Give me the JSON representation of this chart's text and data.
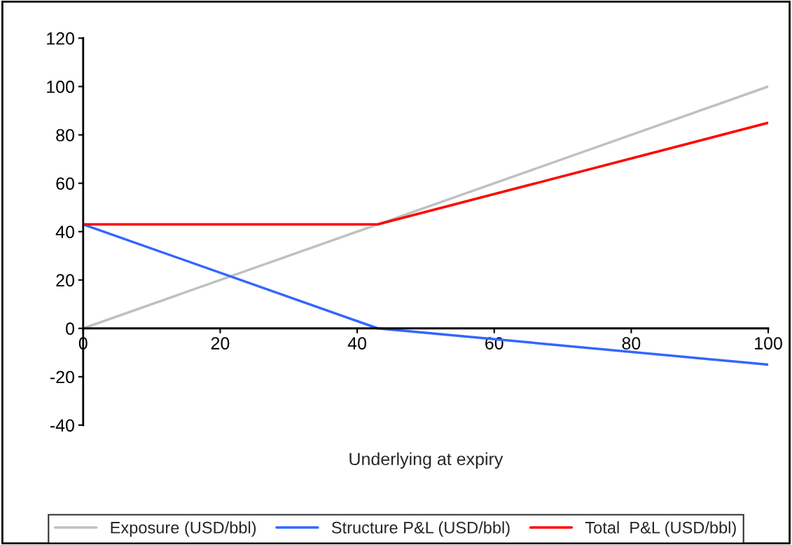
{
  "chart_data": {
    "type": "line",
    "xlabel": "Underlying at expiry",
    "x": [
      0,
      43,
      100
    ],
    "series": [
      {
        "name": "Exposure (USD/bbl)",
        "color": "#c0c0c0",
        "values": [
          0,
          43,
          100
        ]
      },
      {
        "name": "Structure P&L (USD/bbl)",
        "color": "#3366ff",
        "values": [
          43,
          0,
          -15
        ]
      },
      {
        "name": "Total  P&L (USD/bbl)",
        "color": "#ff0000",
        "values": [
          43,
          43,
          85
        ]
      }
    ],
    "xlim": [
      0,
      100
    ],
    "xticks": [
      0,
      20,
      40,
      60,
      80,
      100
    ],
    "ylim": [
      -40,
      120
    ],
    "yticks": [
      -40,
      -20,
      0,
      20,
      40,
      60,
      80,
      100,
      120
    ],
    "grid": false,
    "legend": "bottom",
    "marker": "none",
    "line_style": "solid"
  }
}
